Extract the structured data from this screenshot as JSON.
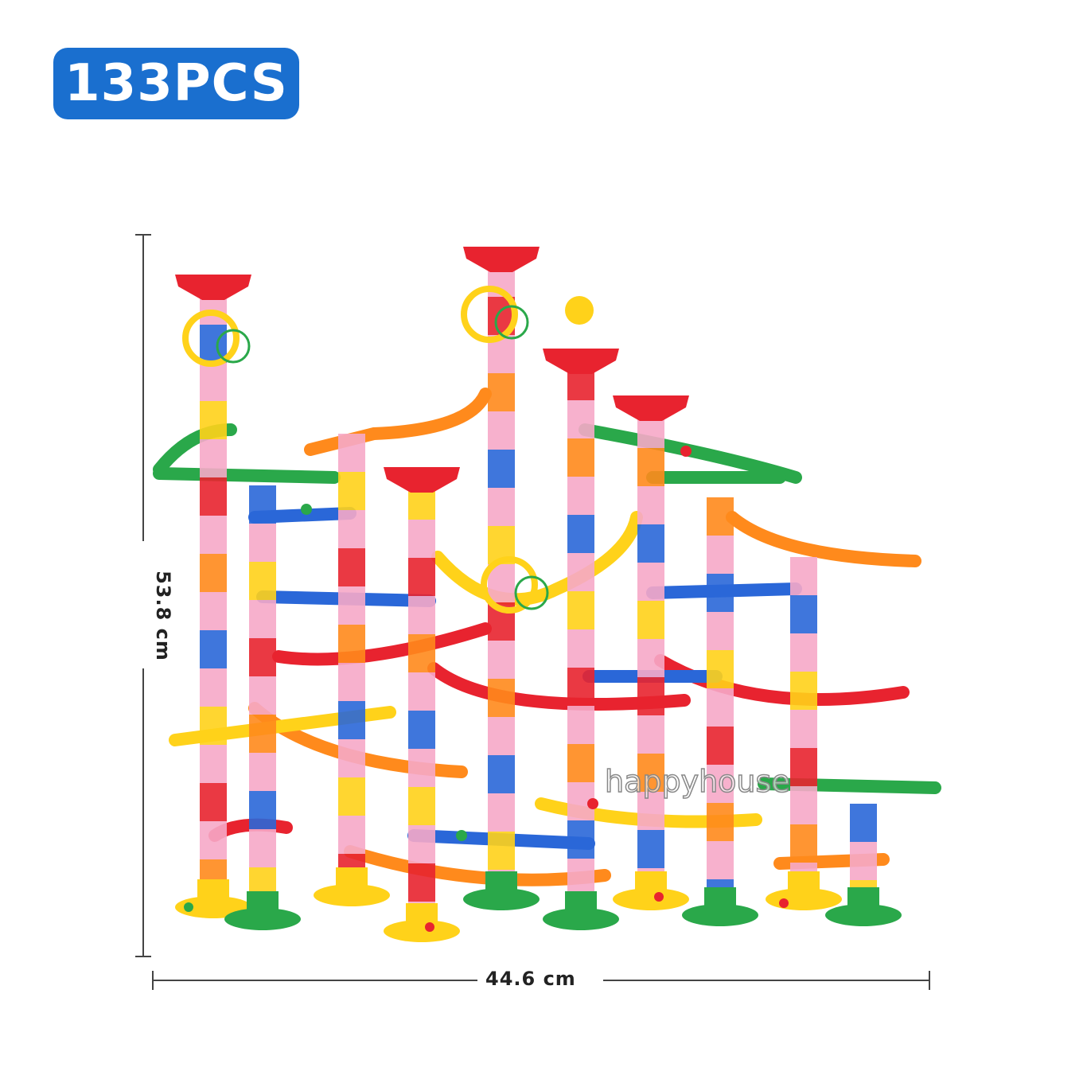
{
  "badge": {
    "text": "133PCS",
    "color": "#1a6fcf"
  },
  "dimensions": {
    "height": "53.8 cm",
    "width": "44.6 cm"
  },
  "watermark": {
    "text": "happyhouse"
  },
  "colors": {
    "red": "#e8232f",
    "yellow": "#ffd21a",
    "green": "#2aa84a",
    "blue": "#2a67d8",
    "orange": "#ff8a1c",
    "pink": "#f6a8c8"
  }
}
